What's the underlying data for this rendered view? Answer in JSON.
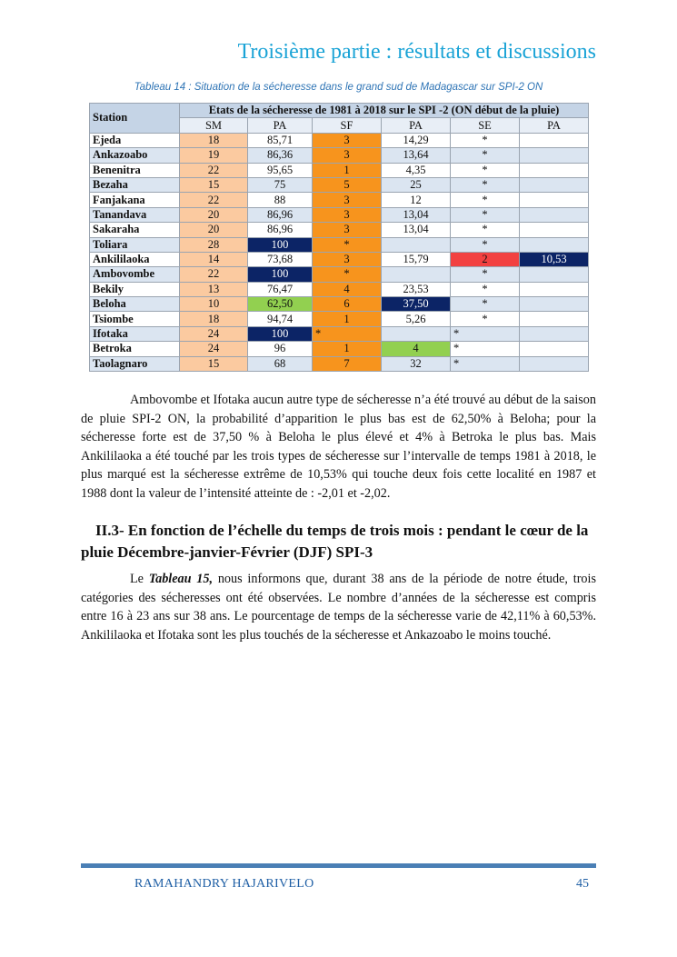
{
  "header": {
    "title": "Troisième partie : résultats et discussions"
  },
  "table": {
    "caption": "Tableau 14 : Situation  de la sécheresse dans le grand sud de Madagascar sur SPI-2 ON",
    "station_header": "Station",
    "span_header": "Etats de la sécheresse de 1981 à 2018 sur le SPI -2 (ON début de la pluie)",
    "sub_headers": [
      "SM",
      "PA",
      "SF",
      "PA",
      "SE",
      "PA"
    ],
    "rows": [
      {
        "station": "Ejeda",
        "sm": "18",
        "pa1": "85,71",
        "sf": "3",
        "pa2": "14,29",
        "se": "*",
        "pa3": ""
      },
      {
        "station": "Ankazoabo",
        "sm": "19",
        "pa1": "86,36",
        "sf": "3",
        "pa2": "13,64",
        "se": "*",
        "pa3": ""
      },
      {
        "station": "Benenitra",
        "sm": "22",
        "pa1": "95,65",
        "sf": "1",
        "pa2": "4,35",
        "se": "*",
        "pa3": ""
      },
      {
        "station": "Bezaha",
        "sm": "15",
        "pa1": "75",
        "sf": "5",
        "pa2": "25",
        "se": "*",
        "pa3": ""
      },
      {
        "station": "Fanjakana",
        "sm": "22",
        "pa1": "88",
        "sf": "3",
        "pa2": "12",
        "se": "*",
        "pa3": ""
      },
      {
        "station": "Tanandava",
        "sm": "20",
        "pa1": "86,96",
        "sf": "3",
        "pa2": "13,04",
        "se": "*",
        "pa3": ""
      },
      {
        "station": "Sakaraha",
        "sm": "20",
        "pa1": "86,96",
        "sf": "3",
        "pa2": "13,04",
        "se": "*",
        "pa3": ""
      },
      {
        "station": "Toliara",
        "sm": "28",
        "pa1": "100",
        "sf": "*",
        "pa2": "",
        "se": "*",
        "pa3": ""
      },
      {
        "station": "Ankililaoka",
        "sm": "14",
        "pa1": "73,68",
        "sf": "3",
        "pa2": "15,79",
        "se": "2",
        "pa3": "10,53"
      },
      {
        "station": "Ambovombe",
        "sm": "22",
        "pa1": "100",
        "sf": "*",
        "pa2": "",
        "se": "*",
        "pa3": ""
      },
      {
        "station": "Bekily",
        "sm": "13",
        "pa1": "76,47",
        "sf": "4",
        "pa2": "23,53",
        "se": "*",
        "pa3": ""
      },
      {
        "station": "Beloha",
        "sm": "10",
        "pa1": "62,50",
        "sf": "6",
        "pa2": "37,50",
        "se": "*",
        "pa3": ""
      },
      {
        "station": "Tsiombe",
        "sm": "18",
        "pa1": "94,74",
        "sf": "1",
        "pa2": "5,26",
        "se": "*",
        "pa3": ""
      },
      {
        "station": "Ifotaka",
        "sm": "24",
        "pa1": "100",
        "sf": "*",
        "pa2": "",
        "se": "*",
        "pa3": ""
      },
      {
        "station": "Betroka",
        "sm": "24",
        "pa1": "96",
        "sf": "1",
        "pa2": "4",
        "se": "*",
        "pa3": ""
      },
      {
        "station": "Taolagnaro",
        "sm": "15",
        "pa1": "68",
        "sf": "7",
        "pa2": "32",
        "se": "*",
        "pa3": ""
      }
    ]
  },
  "para1": "Ambovombe et Ifotaka aucun autre type de sécheresse n’a été trouvé au début de la saison de pluie SPI-2 ON, la probabilité d’apparition le plus bas est de 62,50% à Beloha; pour la sécheresse forte est de 37,50 % à Beloha le plus élevé et 4% à Betroka le plus bas. Mais Ankililaoka a été touché par les trois types de sécheresse sur l’intervalle de temps 1981 à 2018, le plus marqué est la sécheresse extrême de 10,53% qui touche deux fois cette localité en 1987 et 1988 dont la valeur de l’intensité atteinte de : -2,01 et -2,02.",
  "section": {
    "heading": "II.3- En fonction de l’échelle du temps de trois mois : pendant le cœur de la pluie Décembre-janvier-Février (DJF) SPI-3"
  },
  "para2": {
    "prefix": "Le ",
    "bold_ref": "Tableau 15,",
    "rest": " nous informons que, durant 38 ans de la période de notre étude, trois catégories des sécheresses ont été observées. Le nombre d’années de la sécheresse est compris entre 16 à 23 ans sur 38 ans. Le pourcentage de temps de la sécheresse varie de 42,11% à 60,53%. Ankililaoka et Ifotaka sont les plus touchés de la sécheresse et Ankazoabo le moins touché."
  },
  "footer": {
    "author": "RAMAHANDRY HAJARIVELO",
    "page": "45"
  },
  "colors": {
    "header": "#1aa3d6",
    "caption": "#2e74b5",
    "peach": "#fbcaa0",
    "orange": "#f7941d",
    "navy": "#0c2466",
    "green": "#92d050",
    "red": "#f24141",
    "footer_rule": "#4a7fb5"
  }
}
